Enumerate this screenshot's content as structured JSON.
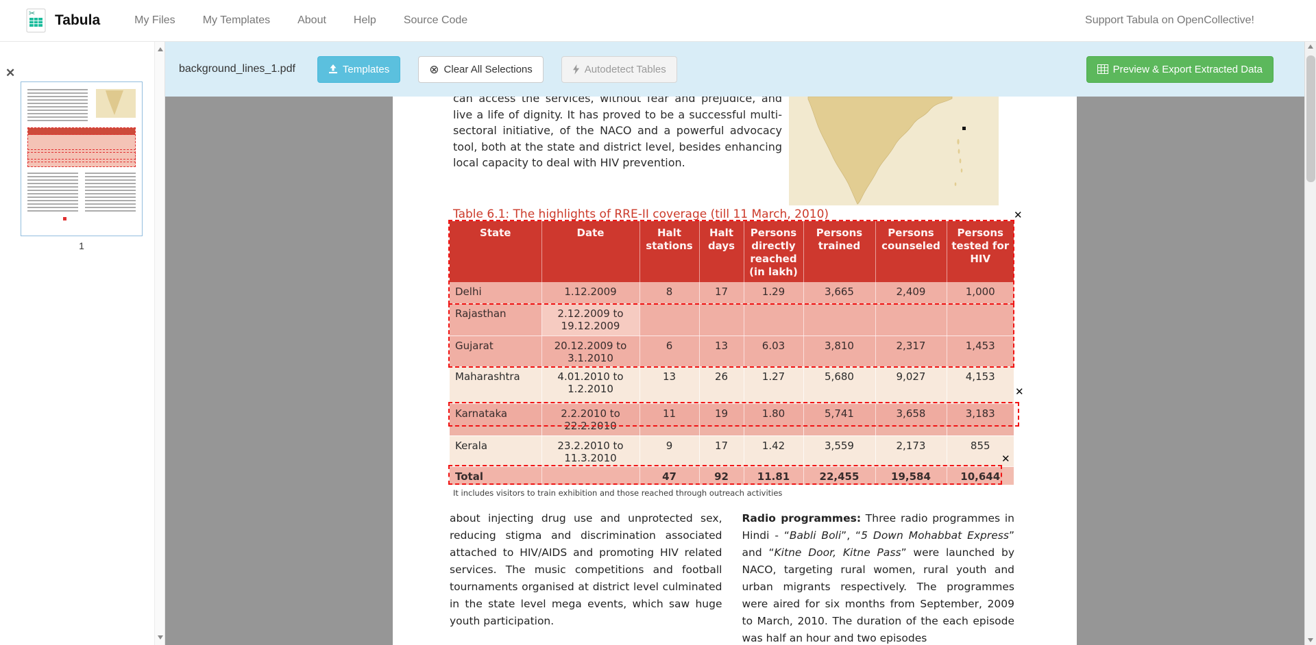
{
  "navbar": {
    "brand": "Tabula",
    "items": [
      {
        "label": "My Files"
      },
      {
        "label": "My Templates"
      },
      {
        "label": "About"
      },
      {
        "label": "Help"
      },
      {
        "label": "Source Code"
      }
    ],
    "support_text": "Support Tabula on OpenCollective!"
  },
  "toolbar": {
    "filename": "background_lines_1.pdf",
    "templates_label": "Templates",
    "clear_label": "Clear All Selections",
    "autodetect_label": "Autodetect Tables",
    "export_label": "Preview & Export Extracted Data"
  },
  "sidebar": {
    "page_number": "1"
  },
  "ui": {
    "close_glyph": "✕",
    "clear_icon_glyph": "⊗",
    "scissors_glyph": "✂"
  },
  "colors": {
    "toolbar_bg": "#d9edf7",
    "templates_button": "#5bc0de",
    "export_button": "#5cb85c",
    "table_header_red": "#cb382d",
    "selection_red": "#f01414",
    "title_red": "#cc3a2a",
    "workspace_gray": "#969696"
  },
  "document": {
    "intro_paragraph": "can access the services, without fear and prejudice, and live a life of dignity. It has proved to be a successful multi-sectoral initiative, of the NACO and a powerful advocacy tool, both at the state and district level, besides enhancing local capacity to deal with HIV prevention.",
    "table_title": "Table 6.1: The highlights of RRE-II coverage (till 11 March, 2010)",
    "table": {
      "headers": [
        "State",
        "Date",
        "Halt stations",
        "Halt days",
        "Persons directly reached (in lakh)",
        "Persons trained",
        "Persons counseled",
        "Persons tested for HIV"
      ],
      "rows": [
        [
          "Delhi",
          "1.12.2009",
          "8",
          "17",
          "1.29",
          "3,665",
          "2,409",
          "1,000"
        ],
        [
          "Rajasthan",
          "2.12.2009 to 19.12.2009",
          "",
          "",
          "",
          "",
          "",
          ""
        ],
        [
          "Gujarat",
          "20.12.2009 to 3.1.2010",
          "6",
          "13",
          "6.03",
          "3,810",
          "2,317",
          "1,453"
        ],
        [
          "Maharashtra",
          "4.01.2010 to 1.2.2010",
          "13",
          "26",
          "1.27",
          "5,680",
          "9,027",
          "4,153"
        ],
        [
          "Karnataka",
          "2.2.2010 to 22.2.2010",
          "11",
          "19",
          "1.80",
          "5,741",
          "3,658",
          "3,183"
        ],
        [
          "Kerala",
          "23.2.2010 to 11.3.2010",
          "9",
          "17",
          "1.42",
          "3,559",
          "2,173",
          "855"
        ],
        [
          "Total",
          "",
          "47",
          "92",
          "11.81",
          "22,455",
          "19,584",
          "10,644"
        ]
      ]
    },
    "footnote": "It includes visitors to train exhibition and those reached through outreach activities",
    "left_column": "about injecting drug use and unprotected sex, reducing stigma and discrimination associated attached to HIV/AIDS and promoting HIV related services. The music competitions and football tournaments organised at district level culminated in the state level mega events, which saw huge youth participation.",
    "right_column": {
      "lead": "Radio programmes:",
      "part1": " Three radio programmes in Hindi - “",
      "title1": "Babli Boli",
      "part2": "”, “",
      "title2": "5 Down Mohabbat Express",
      "part3": "” and “",
      "title3": "Kitne Door, Kitne Pass",
      "part4": "” were launched by NACO, targeting rural women, rural youth and urban migrants respectively. The programmes were aired for six months from September, 2009 to March, 2010. The duration of the each episode was half an hour and two episodes"
    }
  }
}
